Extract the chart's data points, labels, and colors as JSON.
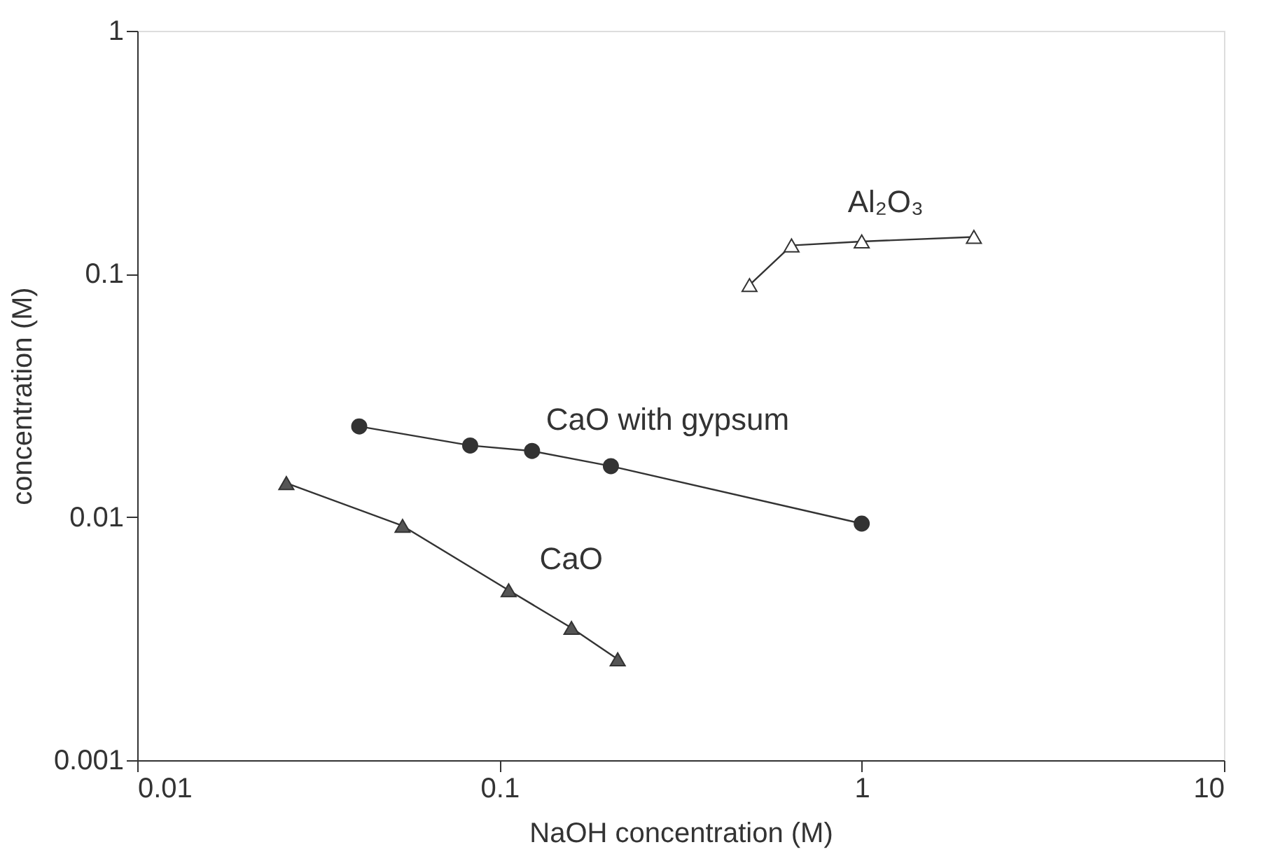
{
  "chart_data": {
    "type": "line",
    "xlabel": "NaOH concentration (M)",
    "ylabel": "concentration (M)",
    "log": "xy",
    "line_style": "solid",
    "xlim": [
      0.01,
      10
    ],
    "xticks": [
      0.01,
      0.1,
      1,
      10
    ],
    "ylim": [
      0.001,
      1
    ],
    "yticks": [
      0.001,
      0.01,
      0.1,
      1
    ],
    "series": [
      {
        "name": "Al₂O₃",
        "color": "#ffffff",
        "marker": "triangle",
        "x": [
          0.49,
          0.64,
          1,
          2.04
        ],
        "values": [
          0.09,
          0.131,
          0.136,
          0.142
        ]
      },
      {
        "name": "CaO with gypsum",
        "color": "#333333",
        "marker": "circle",
        "x": [
          0.041,
          0.083,
          0.123,
          0.203,
          1
        ],
        "values": [
          0.0236,
          0.0197,
          0.0187,
          0.0162,
          0.0094
        ]
      },
      {
        "name": "CaO",
        "color": "#555555",
        "marker": "triangle",
        "x": [
          0.0258,
          0.054,
          0.106,
          0.158,
          0.212
        ],
        "values": [
          0.0138,
          0.0092,
          0.005,
          0.0035,
          0.0026
        ]
      }
    ]
  }
}
